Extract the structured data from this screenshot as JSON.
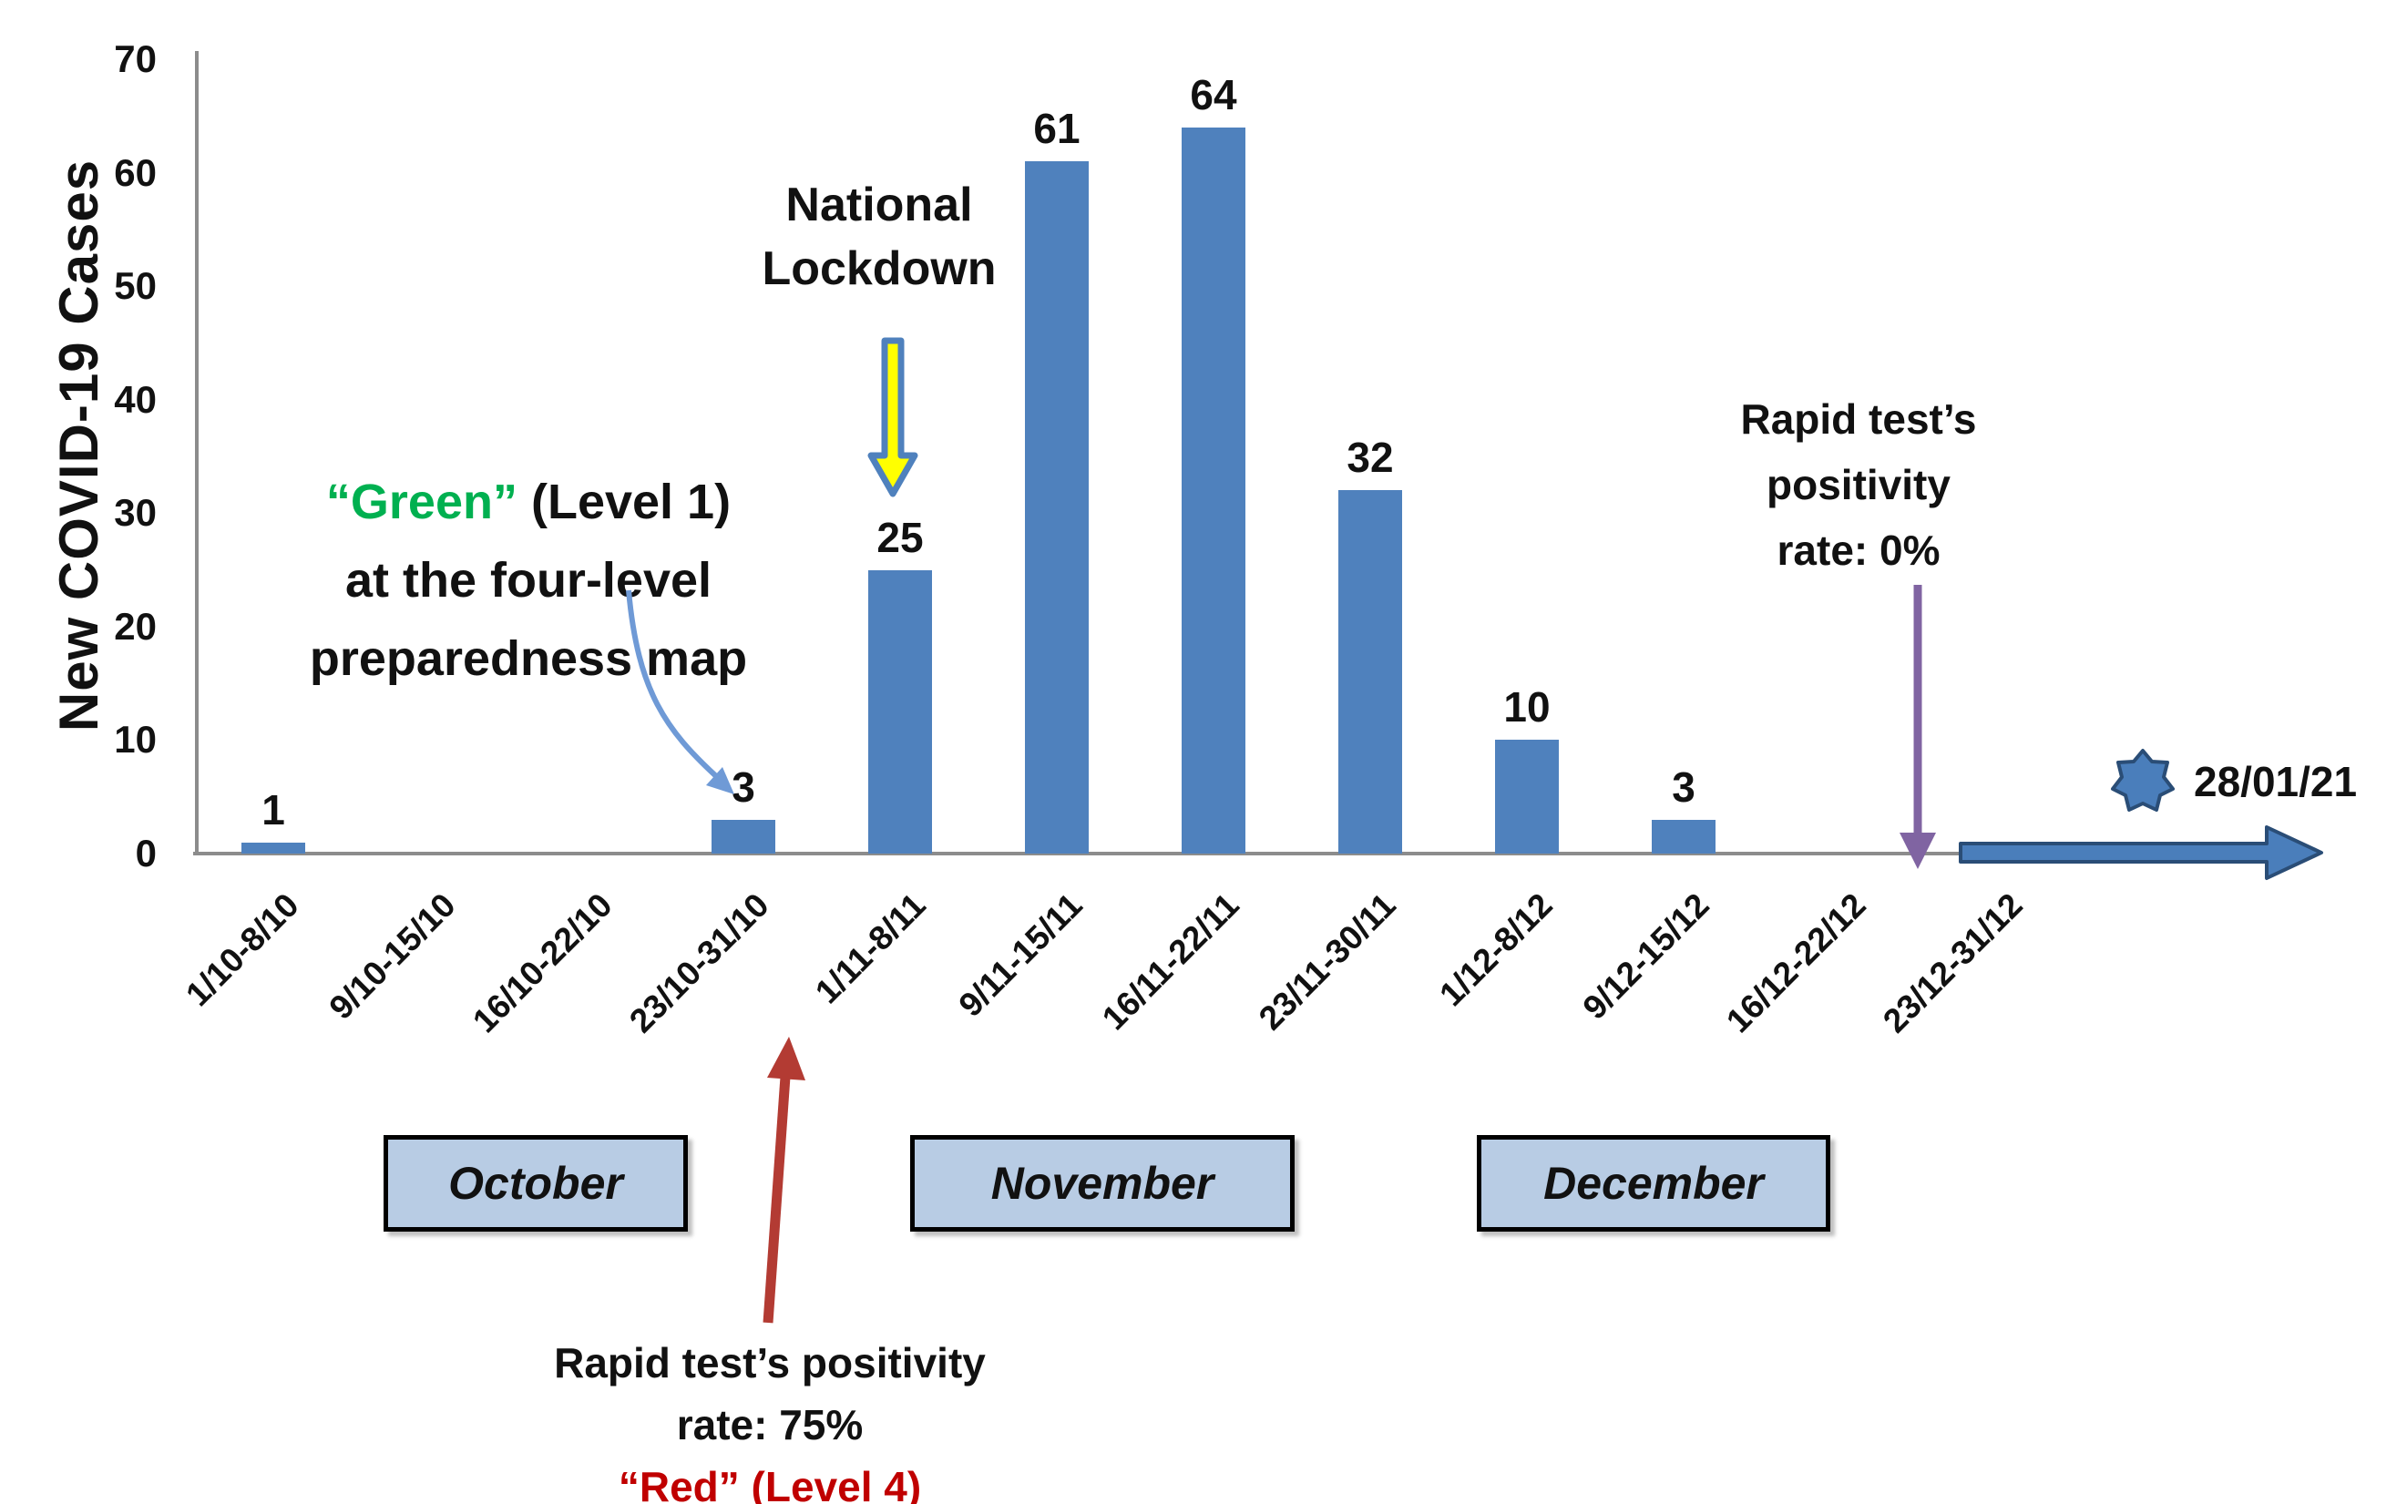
{
  "chart_data": {
    "type": "bar",
    "title": "",
    "ylabel": "New COVID-19 Cases",
    "xlabel": "",
    "ylim": [
      0,
      70
    ],
    "yticks": [
      0,
      10,
      20,
      30,
      40,
      50,
      60,
      70
    ],
    "grid": "off",
    "legend": "none",
    "categories": [
      "1/10-8/10",
      "9/10-15/10",
      "16/10-22/10",
      "23/10-31/10",
      "1/11-8/11",
      "9/11-15/11",
      "16/11-22/11",
      "23/11-30/11",
      "1/12-8/12",
      "9/12-15/12",
      "16/12-22/12",
      "23/12-31/12"
    ],
    "values": [
      1,
      0,
      0,
      3,
      25,
      61,
      64,
      32,
      10,
      3,
      0,
      0
    ],
    "months": [
      "October",
      "November",
      "December"
    ]
  },
  "colors": {
    "bar": "#4F81BD",
    "month_box_fill": "#B8CCE4",
    "green_text": "#00B050",
    "red_text": "#C00000",
    "red_arrow": "#B33B33",
    "purple_arrow": "#8064A2",
    "curve_arrow": "#6F9AD6",
    "lockdown_arrow_fill": "#FFFF00",
    "lockdown_arrow_border": "#4F81BD",
    "timeline_arrow_fill": "#4A7EBB",
    "timeline_arrow_border": "#2A4D76"
  },
  "annotations": {
    "green": {
      "highlight": "“Green”",
      "rest": " (Level 1)",
      "line2": "at the four-level",
      "line3": "preparedness map"
    },
    "lockdown": {
      "line1": "National",
      "line2": "Lockdown"
    },
    "rapid_zero": {
      "line1": "Rapid test’s",
      "line2": "positivity",
      "line3": "rate: 0%"
    },
    "rapid_75": {
      "line1": "Rapid test’s positivity",
      "line2": "rate: 75%",
      "line3": "“Red” (Level 4)"
    },
    "timeline_date": "28/01/21"
  }
}
